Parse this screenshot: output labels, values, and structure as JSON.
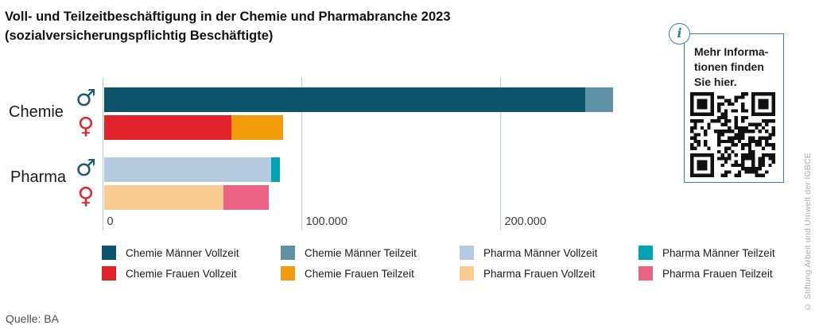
{
  "title": {
    "line1": "Voll- und Teilzeitbeschäftigung in der Chemie und Pharmabranche 2023",
    "line2": "(sozialversicherungspflichtig Beschäftigte)"
  },
  "source": "Quelle: BA",
  "copyright": "© Stiftung Arbeit und Umwelt der IGBCE",
  "info_box": {
    "icon": "i",
    "lines": [
      "Mehr Informa-",
      "tionen finden",
      "Sie hier."
    ],
    "border_color": "#2f7fa0"
  },
  "chart_data": {
    "type": "bar",
    "orientation": "horizontal",
    "stacked": true,
    "title": "Voll- und Teilzeitbeschäftigung in der Chemie und Pharmabranche 2023 (sozialversicherungspflichtig Beschäftigte)",
    "xlabel": "",
    "ylabel": "",
    "xlim": [
      0,
      260000
    ],
    "grid": true,
    "xticks": [
      {
        "value": 0,
        "label": "0"
      },
      {
        "value": 100000,
        "label": "100.000"
      },
      {
        "value": 200000,
        "label": "200.000"
      }
    ],
    "categories": [
      "Chemie",
      "Pharma"
    ],
    "rows": [
      {
        "category": "Chemie",
        "gender": "Männer",
        "symbol": "♂",
        "symbol_name": "male-icon",
        "symbol_color": "#1a5970",
        "segments": [
          {
            "label": "Chemie Männer Vollzeit",
            "value": 242000,
            "color": "#0c536b"
          },
          {
            "label": "Chemie Männer Teilzeit",
            "value": 14000,
            "color": "#5e92a4"
          }
        ]
      },
      {
        "category": "Chemie",
        "gender": "Frauen",
        "symbol": "♀",
        "symbol_name": "female-icon",
        "symbol_color": "#e4232b",
        "segments": [
          {
            "label": "Chemie Frauen Vollzeit",
            "value": 64000,
            "color": "#e3232c"
          },
          {
            "label": "Chemie Frauen Teilzeit",
            "value": 26000,
            "color": "#f49b0c"
          }
        ]
      },
      {
        "category": "Pharma",
        "gender": "Männer",
        "symbol": "♂",
        "symbol_name": "male-icon",
        "symbol_color": "#1a5970",
        "segments": [
          {
            "label": "Pharma Männer Vollzeit",
            "value": 84000,
            "color": "#b4cbdf"
          },
          {
            "label": "Pharma Männer Teilzeit",
            "value": 4500,
            "color": "#00a3b4"
          }
        ]
      },
      {
        "category": "Pharma",
        "gender": "Frauen",
        "symbol": "♀",
        "symbol_name": "female-icon",
        "symbol_color": "#e4232b",
        "segments": [
          {
            "label": "Pharma Frauen Vollzeit",
            "value": 60000,
            "color": "#fbcc92"
          },
          {
            "label": "Pharma Frauen Teilzeit",
            "value": 23000,
            "color": "#ec6186"
          }
        ]
      }
    ],
    "legend": {
      "position": "bottom",
      "entries": [
        {
          "label": "Chemie Männer Vollzeit",
          "color": "#0c536b"
        },
        {
          "label": "Chemie Männer Teilzeit",
          "color": "#5e92a4"
        },
        {
          "label": "Pharma Männer Vollzeit",
          "color": "#b4cbdf"
        },
        {
          "label": "Pharma Männer Teilzeit",
          "color": "#00a3b4"
        },
        {
          "label": "Chemie Frauen Vollzeit",
          "color": "#e3232c"
        },
        {
          "label": "Chemie Frauen Teilzeit",
          "color": "#f49b0c"
        },
        {
          "label": "Pharma Frauen Vollzeit",
          "color": "#fbcc92"
        },
        {
          "label": "Pharma Frauen Teilzeit",
          "color": "#ec6186"
        }
      ]
    }
  }
}
